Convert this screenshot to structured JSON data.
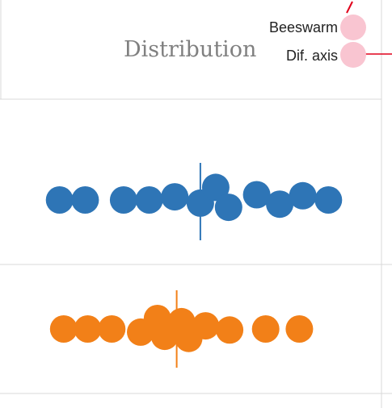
{
  "header": {
    "title": "Distribution",
    "options": [
      {
        "label": "Beeswarm",
        "color": "#F9C5D1"
      },
      {
        "label": "Dif. axis",
        "color": "#F9C5D1"
      }
    ],
    "connector_color": "#E0001B"
  },
  "colors": {
    "grid": "#D9D9D9",
    "background": "#FFFFFF"
  },
  "chart_data": [
    {
      "type": "scatter",
      "subtype": "beeswarm",
      "title": "",
      "xlabel": "",
      "ylabel": "",
      "color": "#2E75B6",
      "points": [
        {
          "x": 1.0,
          "y": 0
        },
        {
          "x": 2.0,
          "y": 0
        },
        {
          "x": 3.5,
          "y": 0
        },
        {
          "x": 4.5,
          "y": 0
        },
        {
          "x": 5.5,
          "y": 0.15
        },
        {
          "x": 6.5,
          "y": -0.15
        },
        {
          "x": 7.1,
          "y": 0.6
        },
        {
          "x": 7.6,
          "y": -0.35
        },
        {
          "x": 8.7,
          "y": 0.25
        },
        {
          "x": 9.6,
          "y": -0.2
        },
        {
          "x": 10.5,
          "y": 0.2
        },
        {
          "x": 11.5,
          "y": 0
        }
      ],
      "reference_line": 6.5,
      "xlim": [
        0,
        12.5
      ],
      "grid": false
    },
    {
      "type": "scatter",
      "subtype": "beeswarm",
      "title": "",
      "xlabel": "",
      "ylabel": "",
      "color": "#F28018",
      "points": [
        {
          "x": 1.0,
          "y": 0
        },
        {
          "x": 2.0,
          "y": 0
        },
        {
          "x": 3.0,
          "y": 0
        },
        {
          "x": 4.2,
          "y": -0.15
        },
        {
          "x": 4.9,
          "y": 0.5
        },
        {
          "x": 5.2,
          "y": -0.35
        },
        {
          "x": 5.9,
          "y": 0.35
        },
        {
          "x": 6.2,
          "y": -0.45
        },
        {
          "x": 6.9,
          "y": 0.15
        },
        {
          "x": 7.9,
          "y": -0.05
        },
        {
          "x": 9.4,
          "y": 0
        },
        {
          "x": 10.8,
          "y": 0
        }
      ],
      "reference_line": 5.7,
      "xlim": [
        0,
        12.5
      ],
      "grid": false
    }
  ]
}
